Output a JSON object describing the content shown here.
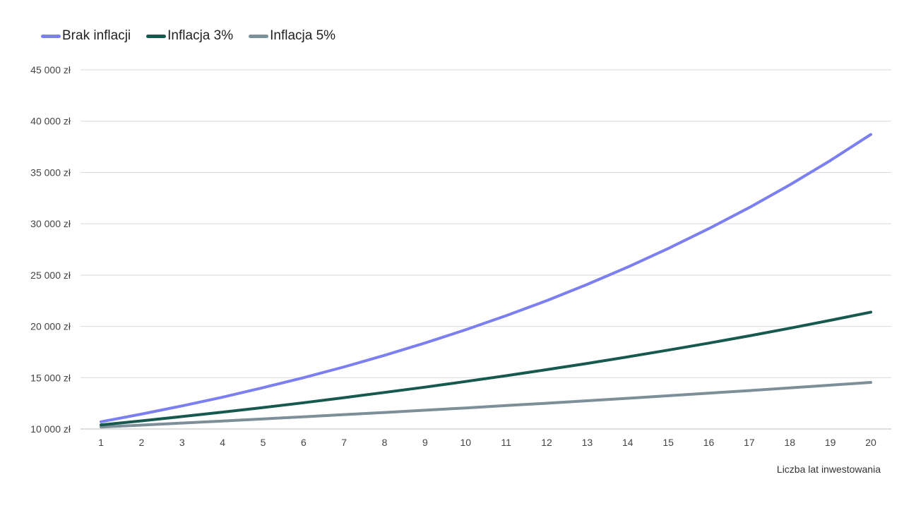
{
  "chart_data": {
    "type": "line",
    "title": "",
    "xlabel": "Liczba lat inwestowania",
    "ylabel": "",
    "x": [
      1,
      2,
      3,
      4,
      5,
      6,
      7,
      8,
      9,
      10,
      11,
      12,
      13,
      14,
      15,
      16,
      17,
      18,
      19,
      20
    ],
    "ylim": [
      10000,
      45000
    ],
    "yticks": [
      10000,
      15000,
      20000,
      25000,
      30000,
      35000,
      40000,
      45000
    ],
    "ytick_labels": [
      "10 000 zł",
      "15 000 zł",
      "20 000 zł",
      "25 000 zł",
      "30 000 zł",
      "35 000 zł",
      "40 000 zł",
      "45 000 zł"
    ],
    "grid": true,
    "legend_position": "top-left",
    "series": [
      {
        "name": "Brak inflacji",
        "color": "#7b7ff0",
        "values": [
          10700,
          11450,
          12250,
          13100,
          14030,
          15000,
          16050,
          17180,
          18380,
          19670,
          21040,
          22510,
          24090,
          25780,
          27590,
          29520,
          31580,
          33790,
          36160,
          38700
        ]
      },
      {
        "name": "Inflacja 3%",
        "color": "#17584f",
        "values": [
          10390,
          10790,
          11210,
          11640,
          12090,
          12560,
          13050,
          13560,
          14080,
          14630,
          15190,
          15780,
          16390,
          17030,
          17690,
          18370,
          19080,
          19820,
          20590,
          21390
        ]
      },
      {
        "name": "Inflacja 5%",
        "color": "#7d8f99",
        "values": [
          10190,
          10380,
          10580,
          10780,
          10980,
          11190,
          11400,
          11610,
          11830,
          12050,
          12280,
          12510,
          12750,
          12990,
          13240,
          13490,
          13740,
          14000,
          14270,
          14540
        ]
      }
    ]
  }
}
